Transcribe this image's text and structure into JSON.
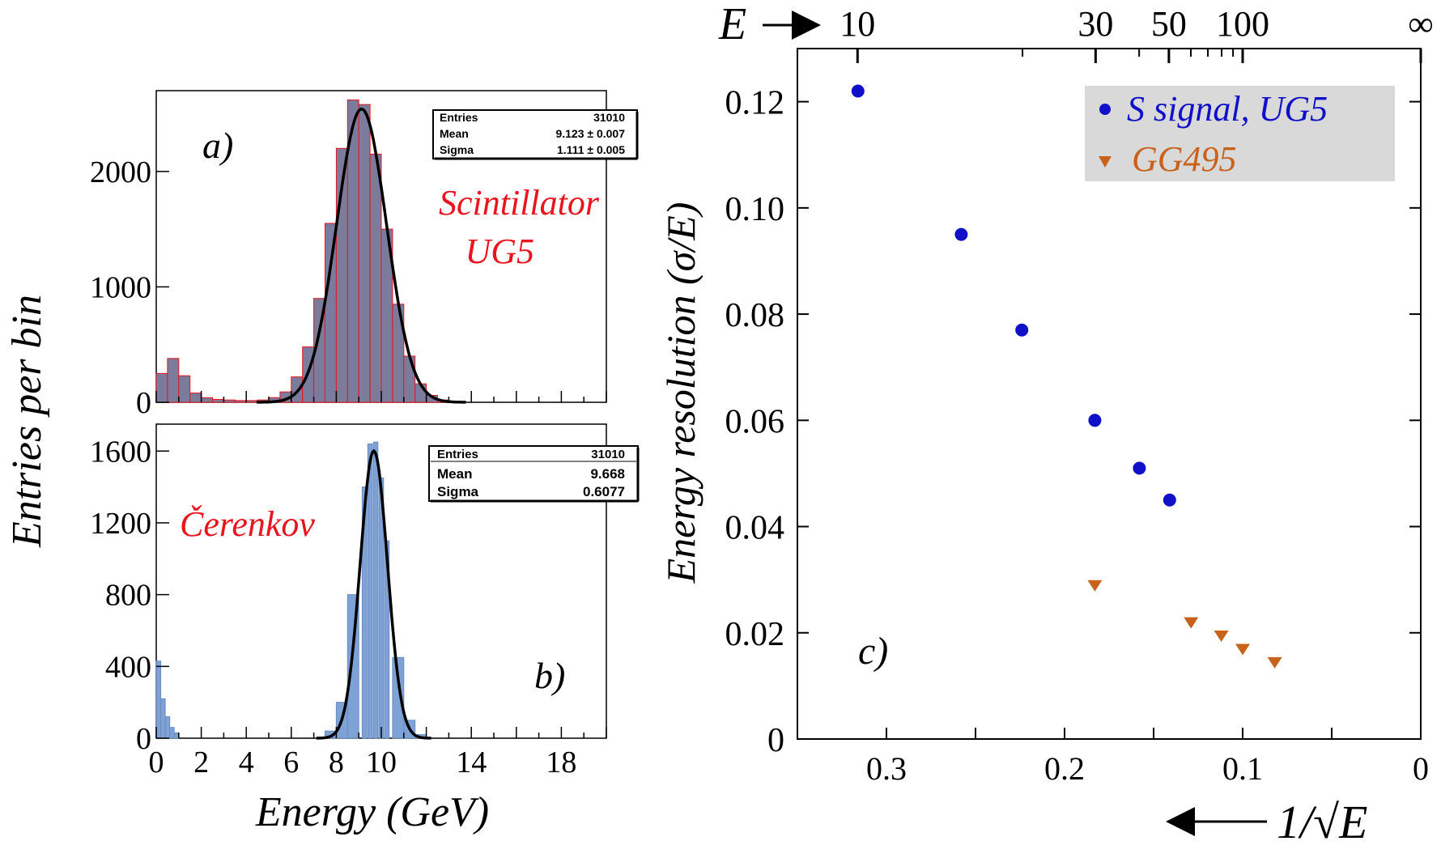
{
  "shared": {
    "ylabel": "Entries per bin",
    "xlabel": "Energy (GeV)",
    "x_ticks": [
      "0",
      "2",
      "4",
      "6",
      "8",
      "10",
      "14",
      "18"
    ]
  },
  "panel_a": {
    "label": "a)",
    "annotation_line1": "Scintillator",
    "annotation_line2": "UG5",
    "stats": {
      "entries_label": "Entries",
      "entries_value": "31010",
      "mean_label": "Mean",
      "mean_value": "9.123 ± 0.007",
      "sigma_label": "Sigma",
      "sigma_value": "1.111 ± 0.005"
    },
    "y_ticks": [
      "0",
      "1000",
      "2000"
    ]
  },
  "panel_b": {
    "label": "b)",
    "annotation": "Čerenkov",
    "stats": {
      "entries_label": "Entries",
      "entries_value": "31010",
      "mean_label": "Mean",
      "mean_value": "9.668",
      "sigma_label": "Sigma",
      "sigma_value": "0.6077"
    },
    "y_ticks": [
      "0",
      "400",
      "800",
      "1200",
      "1600"
    ]
  },
  "panel_c": {
    "label": "c)",
    "ylabel": "Energy resolution (σ/E)",
    "top_axis_label": "E",
    "top_ticks": [
      "10",
      "30",
      "50",
      "100",
      "∞"
    ],
    "bottom_label": "1/√E",
    "y_ticks": [
      "0",
      "0.02",
      "0.04",
      "0.06",
      "0.08",
      "0.10",
      "0.12"
    ],
    "x_ticks": [
      "0.3",
      "0.2",
      "0.1",
      "0"
    ],
    "legend": [
      "S signal, UG5",
      "GG495"
    ]
  },
  "colors": {
    "s_series": "#1010c8",
    "gg_series": "#c8621a",
    "annotation_red": "#e8141e",
    "hist_a_fill": "#7b7b9c",
    "hist_b_fill": "#7fa2d6",
    "legend_bg": "#d9d9d9"
  },
  "chart_data": [
    {
      "type": "bar",
      "title": "",
      "xlabel": "Energy (GeV)",
      "ylabel": "Entries per bin",
      "xlim": [
        0,
        20
      ],
      "ylim": [
        0,
        2700
      ],
      "annotation": "Scintillator UG5",
      "entries": 31010,
      "mean": 9.123,
      "sigma": 1.111,
      "series": [
        {
          "name": "histogram",
          "x": [
            0.25,
            0.75,
            1.25,
            1.75,
            2.25,
            2.75,
            3.25,
            3.75,
            4.25,
            4.75,
            5.25,
            5.75,
            6.25,
            6.75,
            7.25,
            7.75,
            8.25,
            8.75,
            9.25,
            9.75,
            10.25,
            10.75,
            11.25,
            11.75,
            12.25,
            12.75,
            13.25
          ],
          "values": [
            250,
            380,
            230,
            80,
            40,
            25,
            20,
            15,
            15,
            20,
            40,
            90,
            220,
            480,
            900,
            1550,
            2200,
            2620,
            2580,
            2150,
            1500,
            850,
            400,
            160,
            60,
            20,
            8
          ]
        }
      ]
    },
    {
      "type": "bar",
      "title": "",
      "xlabel": "Energy (GeV)",
      "ylabel": "Entries per bin",
      "xlim": [
        0,
        20
      ],
      "ylim": [
        0,
        1750
      ],
      "annotation": "Čerenkov",
      "entries": 31010,
      "mean": 9.668,
      "sigma": 0.6077,
      "series": [
        {
          "name": "histogram",
          "x": [
            0.1,
            0.3,
            0.5,
            0.7,
            0.9,
            7.75,
            8.25,
            8.75,
            9.25,
            9.5,
            9.75,
            10.0,
            10.25,
            10.75,
            11.25,
            11.75
          ],
          "values": [
            430,
            220,
            120,
            60,
            30,
            40,
            200,
            800,
            1400,
            1640,
            1650,
            1450,
            1100,
            450,
            100,
            20
          ]
        }
      ]
    },
    {
      "type": "scatter",
      "title": "",
      "xlabel": "1/√E",
      "ylabel": "Energy resolution (σ/E)",
      "xlim": [
        0.35,
        0
      ],
      "ylim": [
        0,
        0.13
      ],
      "top_axis": {
        "label": "E",
        "ticks": [
          "10",
          "30",
          "50",
          "100",
          "∞"
        ]
      },
      "legend_position": "top-right",
      "series": [
        {
          "name": "S signal, UG5",
          "marker": "circle",
          "x": [
            0.316,
            0.258,
            0.224,
            0.183,
            0.158,
            0.141
          ],
          "y": [
            0.122,
            0.095,
            0.077,
            0.06,
            0.051,
            0.045
          ]
        },
        {
          "name": "GG495",
          "marker": "triangle-down",
          "x": [
            0.183,
            0.129,
            0.112,
            0.1,
            0.082
          ],
          "y": [
            0.029,
            0.022,
            0.0195,
            0.017,
            0.0145
          ]
        }
      ]
    }
  ]
}
